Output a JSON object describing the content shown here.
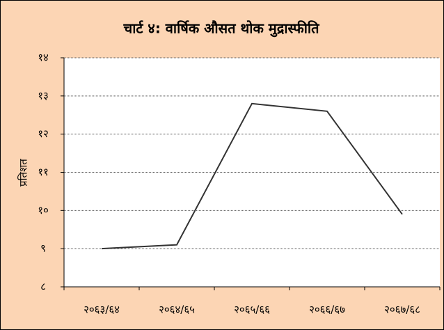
{
  "chart_data": {
    "type": "line",
    "title": "चार्ट ४: वार्षिक औसत थोक मुद्रास्फीति",
    "y_label": "प्रतिशत",
    "categories": [
      "२०६३/६४",
      "२०६४/६५",
      "२०६५/६६",
      "२०६६/६७",
      "२०६७/६८"
    ],
    "series": [
      {
        "name": "थोक मुद्रास्फीति",
        "color": "#333333",
        "values": [
          9.0,
          9.1,
          12.8,
          12.6,
          9.9
        ]
      }
    ],
    "ylim": [
      8,
      14
    ],
    "yticks": [
      {
        "value": 8,
        "label": "८"
      },
      {
        "value": 9,
        "label": "९"
      },
      {
        "value": 10,
        "label": "१०"
      },
      {
        "value": 11,
        "label": "११"
      },
      {
        "value": 12,
        "label": "१२"
      },
      {
        "value": 13,
        "label": "१३"
      },
      {
        "value": 14,
        "label": "१४"
      }
    ],
    "grid": true
  }
}
